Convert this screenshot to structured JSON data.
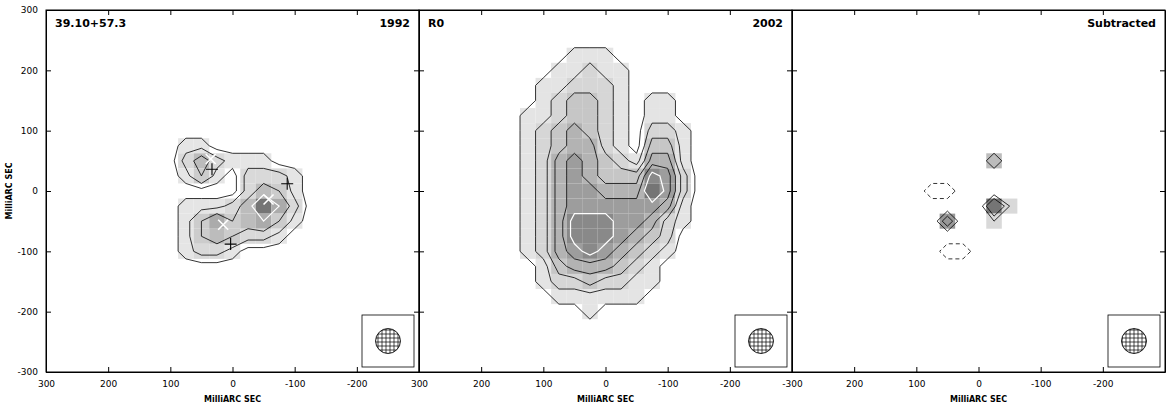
{
  "chart_data": [
    {
      "type": "contour",
      "title": "39.10+57.3",
      "subtitle": "1992",
      "x_label": "MilliARC SEC",
      "y_label": "MilliARC SEC",
      "xlim": [
        300,
        -300
      ],
      "ylim": [
        -300,
        300
      ],
      "xticks": [
        300,
        200,
        100,
        0,
        -100,
        -200
      ],
      "yticks": [
        -300,
        -200,
        -100,
        0,
        100,
        200,
        300
      ],
      "grid_x": [
        150,
        125,
        100,
        75,
        50,
        25,
        0,
        -25,
        -50,
        -75,
        -100,
        -125,
        -150
      ],
      "grid_y": [
        250,
        225,
        200,
        175,
        150,
        125,
        100,
        75,
        50,
        25,
        0,
        -25,
        -50,
        -75,
        -100,
        -125,
        -150,
        -175,
        -200,
        -225
      ],
      "z": [
        [
          0,
          0,
          0,
          0,
          0,
          0,
          0,
          0,
          0,
          0,
          0,
          0,
          0
        ],
        [
          0,
          0,
          0,
          0,
          0,
          0,
          0,
          0,
          0,
          0,
          0,
          0,
          0
        ],
        [
          0,
          0,
          0,
          0,
          0,
          0,
          0,
          0,
          0,
          0,
          0,
          0,
          0
        ],
        [
          0,
          0,
          0,
          0,
          0,
          0,
          0,
          0,
          0,
          0,
          0,
          0,
          0
        ],
        [
          0,
          0,
          0,
          0,
          0,
          0,
          0,
          0,
          0,
          0,
          0,
          0,
          0
        ],
        [
          0,
          0,
          0,
          0,
          0,
          0,
          0,
          0,
          0,
          0,
          0,
          0,
          0
        ],
        [
          0,
          0,
          0,
          0,
          0,
          0,
          0,
          0,
          0,
          0,
          0,
          0,
          0
        ],
        [
          0,
          0,
          0,
          1,
          1,
          0,
          0,
          0,
          0,
          0,
          0,
          0,
          0
        ],
        [
          0,
          0,
          0,
          2,
          4,
          2,
          1,
          1,
          1,
          0,
          0,
          0,
          0
        ],
        [
          0,
          0,
          0,
          1,
          3,
          1,
          0,
          2,
          2,
          2,
          1,
          0,
          0
        ],
        [
          0,
          0,
          0,
          0,
          0,
          0,
          0,
          2,
          4,
          3,
          1,
          0,
          0
        ],
        [
          0,
          0,
          0,
          1,
          1,
          1,
          2,
          4,
          8,
          5,
          2,
          0,
          0
        ],
        [
          0,
          0,
          0,
          1,
          3,
          5,
          3,
          4,
          5,
          3,
          1,
          0,
          0
        ],
        [
          0,
          0,
          0,
          1,
          3,
          4,
          3,
          2,
          2,
          1,
          0,
          0,
          0
        ],
        [
          0,
          0,
          0,
          1,
          2,
          2,
          1,
          0,
          0,
          0,
          0,
          0,
          0
        ],
        [
          0,
          0,
          0,
          0,
          0,
          0,
          0,
          0,
          0,
          0,
          0,
          0,
          0
        ],
        [
          0,
          0,
          0,
          0,
          0,
          0,
          0,
          0,
          0,
          0,
          0,
          0,
          0
        ],
        [
          0,
          0,
          0,
          0,
          0,
          0,
          0,
          0,
          0,
          0,
          0,
          0,
          0
        ],
        [
          0,
          0,
          0,
          0,
          0,
          0,
          0,
          0,
          0,
          0,
          0,
          0,
          0
        ],
        [
          0,
          0,
          0,
          0,
          0,
          0,
          0,
          0,
          0,
          0,
          0,
          0,
          0
        ]
      ],
      "levels": [
        0.5,
        1.5,
        3,
        5
      ],
      "beam": 40,
      "markers": [
        {
          "x": 35,
          "y": 53,
          "marker": "cross"
        },
        {
          "x": 33,
          "y": 36,
          "marker": "plus"
        },
        {
          "x": -58,
          "y": -14,
          "marker": "cross"
        },
        {
          "x": -88,
          "y": 12,
          "marker": "plus"
        },
        {
          "x": 15,
          "y": -56,
          "marker": "cross"
        },
        {
          "x": 3,
          "y": -88,
          "marker": "plus"
        }
      ]
    },
    {
      "type": "contour",
      "title": "R0",
      "subtitle": "2002",
      "x_label": "MilliARC SEC",
      "xlim": [
        300,
        -300
      ],
      "ylim": [
        -300,
        300
      ],
      "xticks": [
        300,
        200,
        100,
        0,
        -100,
        -200,
        -300
      ],
      "yticks": [
        -300,
        -200,
        -100,
        0,
        100,
        200,
        300
      ],
      "tick_labels": "x",
      "grid_x": [
        150,
        125,
        100,
        75,
        50,
        25,
        0,
        -25,
        -50,
        -75,
        -100,
        -125,
        -150
      ],
      "grid_y": [
        250,
        225,
        200,
        175,
        150,
        125,
        100,
        75,
        50,
        25,
        0,
        -25,
        -50,
        -75,
        -100,
        -125,
        -150,
        -175,
        -200,
        -225
      ],
      "z": [
        [
          0,
          0,
          0,
          0,
          0,
          0,
          0,
          0,
          0,
          0,
          0,
          0,
          0
        ],
        [
          0,
          0,
          0,
          0,
          1,
          1,
          1,
          0,
          0,
          0,
          0,
          0,
          0
        ],
        [
          0,
          0,
          0,
          1,
          1,
          2,
          1,
          1,
          0,
          0,
          0,
          0,
          0
        ],
        [
          0,
          0,
          1,
          1,
          2,
          2,
          2,
          1,
          0,
          0,
          0,
          0,
          0
        ],
        [
          0,
          0,
          1,
          2,
          3,
          3,
          2,
          1,
          0,
          1,
          1,
          0,
          0
        ],
        [
          0,
          1,
          1,
          2,
          3,
          3,
          2,
          1,
          0,
          1,
          1,
          0,
          0
        ],
        [
          0,
          1,
          2,
          3,
          4,
          3,
          2,
          1,
          0,
          2,
          2,
          1,
          0
        ],
        [
          0,
          1,
          2,
          3,
          4,
          4,
          2,
          1,
          0,
          3,
          3,
          1,
          0
        ],
        [
          0,
          1,
          2,
          4,
          5,
          4,
          3,
          2,
          1,
          4,
          4,
          1,
          0
        ],
        [
          0,
          1,
          2,
          4,
          5,
          4,
          3,
          3,
          3,
          6,
          5,
          2,
          0
        ],
        [
          0,
          1,
          2,
          4,
          5,
          5,
          4,
          4,
          4,
          7,
          5,
          2,
          0
        ],
        [
          0,
          1,
          2,
          4,
          5,
          5,
          5,
          5,
          5,
          5,
          4,
          1,
          0
        ],
        [
          0,
          1,
          2,
          4,
          6,
          6,
          6,
          5,
          5,
          4,
          2,
          1,
          0
        ],
        [
          0,
          1,
          2,
          4,
          6,
          6,
          6,
          5,
          4,
          3,
          2,
          0,
          0
        ],
        [
          0,
          1,
          2,
          4,
          5,
          6,
          5,
          4,
          3,
          2,
          1,
          0,
          0
        ],
        [
          0,
          0,
          1,
          3,
          4,
          4,
          4,
          3,
          2,
          1,
          0,
          0,
          0
        ],
        [
          0,
          0,
          1,
          2,
          2,
          3,
          2,
          2,
          1,
          1,
          0,
          0,
          0
        ],
        [
          0,
          0,
          0,
          1,
          1,
          1,
          1,
          1,
          1,
          0,
          0,
          0,
          0
        ],
        [
          0,
          0,
          0,
          0,
          0,
          1,
          0,
          0,
          0,
          0,
          0,
          0,
          0
        ],
        [
          0,
          0,
          0,
          0,
          0,
          0,
          0,
          0,
          0,
          0,
          0,
          0,
          0
        ]
      ],
      "levels": [
        0.5,
        1.5,
        2.5,
        3.5,
        4.5,
        5.5
      ],
      "beam": 40
    },
    {
      "type": "contour",
      "subtitle": "Subtracted",
      "x_label": "MilliARC SEC",
      "xlim": [
        300,
        -300
      ],
      "ylim": [
        -300,
        300
      ],
      "xticks": [
        200,
        100,
        0,
        -100,
        -200
      ],
      "yticks": [
        -300,
        -200,
        -100,
        0,
        100,
        200,
        300
      ],
      "tick_labels": "x",
      "grid_x": [
        150,
        125,
        100,
        75,
        50,
        25,
        0,
        -25,
        -50,
        -75,
        -100,
        -125,
        -150
      ],
      "grid_y": [
        250,
        225,
        200,
        175,
        150,
        125,
        100,
        75,
        50,
        25,
        0,
        -25,
        -50,
        -75,
        -100,
        -125,
        -150,
        -175,
        -200,
        -225
      ],
      "z": [
        [
          0,
          0,
          0,
          0,
          0,
          0,
          0,
          0,
          0,
          0,
          0,
          0,
          0
        ],
        [
          0,
          0,
          0,
          0,
          0,
          0,
          0,
          0,
          0,
          0,
          0,
          0,
          0
        ],
        [
          0,
          0,
          0,
          0,
          0,
          0,
          0,
          0,
          0,
          0,
          0,
          0,
          0
        ],
        [
          0,
          0,
          0,
          0,
          0,
          0,
          0,
          0,
          0,
          0,
          0,
          0,
          0
        ],
        [
          0,
          0,
          0,
          0,
          0,
          0,
          0,
          0,
          0,
          0,
          0,
          0,
          0
        ],
        [
          0,
          0,
          0,
          0,
          0,
          0,
          0,
          0,
          0,
          0,
          0,
          0,
          0
        ],
        [
          0,
          0,
          0,
          0,
          0,
          0,
          0,
          0,
          0,
          0,
          0,
          0,
          0
        ],
        [
          0,
          0,
          0,
          0,
          0,
          0,
          0,
          0,
          0,
          0,
          0,
          0,
          0
        ],
        [
          0,
          0,
          0,
          0,
          0,
          0,
          0,
          2,
          0,
          0,
          0,
          0,
          0
        ],
        [
          0,
          0,
          0,
          0,
          0,
          0,
          0,
          0,
          0,
          0,
          0,
          0,
          0
        ],
        [
          0,
          0,
          0,
          -2,
          -2,
          0,
          0,
          0,
          0,
          0,
          0,
          0,
          0
        ],
        [
          0,
          0,
          0,
          0,
          0,
          0,
          0,
          4,
          1,
          0,
          0,
          0,
          0
        ],
        [
          0,
          0,
          0,
          0,
          3,
          0,
          0,
          1,
          0,
          0,
          0,
          0,
          0
        ],
        [
          0,
          0,
          0,
          0,
          0,
          0,
          0,
          0,
          0,
          0,
          0,
          0,
          0
        ],
        [
          0,
          0,
          0,
          0,
          -2,
          -2,
          0,
          0,
          0,
          0,
          0,
          0,
          0
        ],
        [
          0,
          0,
          0,
          0,
          0,
          0,
          0,
          0,
          0,
          0,
          0,
          0,
          0
        ],
        [
          0,
          0,
          0,
          0,
          0,
          0,
          0,
          0,
          0,
          0,
          0,
          0,
          0
        ],
        [
          0,
          0,
          0,
          0,
          0,
          0,
          0,
          0,
          0,
          0,
          0,
          0,
          0
        ],
        [
          0,
          0,
          0,
          0,
          0,
          0,
          0,
          0,
          0,
          0,
          0,
          0,
          0
        ],
        [
          0,
          0,
          0,
          0,
          0,
          0,
          0,
          0,
          0,
          0,
          0,
          0,
          0
        ]
      ],
      "levels": [
        -1,
        1,
        2
      ],
      "beam": 40
    }
  ]
}
